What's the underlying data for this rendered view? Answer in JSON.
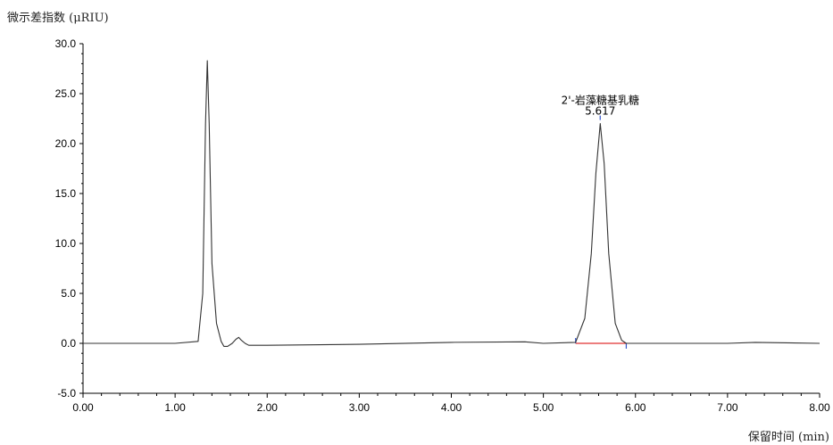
{
  "chart_data": {
    "type": "line",
    "ylabel": "微示差指数 (μRIU)",
    "xlabel": "保留时间 (min)",
    "xlim": [
      0,
      8
    ],
    "ylim": [
      -5,
      30
    ],
    "xticks": [
      "0.00",
      "1.00",
      "2.00",
      "3.00",
      "4.00",
      "5.00",
      "6.00",
      "7.00",
      "8.00"
    ],
    "yticks": [
      "-5.0",
      "0.0",
      "5.0",
      "10.0",
      "15.0",
      "20.0",
      "25.0",
      "30.0"
    ],
    "grid": false,
    "legend": "none",
    "line_color": "#333333",
    "baseline_color": "#e03030",
    "marker_color": "#3355cc",
    "series": [
      {
        "x": [
          0.0,
          0.5,
          1.0,
          1.25,
          1.3,
          1.33,
          1.35,
          1.37,
          1.4,
          1.45,
          1.5,
          1.53,
          1.57,
          1.62,
          1.66,
          1.69,
          1.72,
          1.76,
          1.8,
          2.0,
          3.0,
          4.0,
          4.8,
          5.0,
          5.35,
          5.45,
          5.52,
          5.57,
          5.617,
          5.66,
          5.71,
          5.78,
          5.85,
          5.9,
          6.0,
          7.0,
          7.3,
          8.0
        ],
        "y": [
          0.0,
          0.0,
          0.0,
          0.2,
          5.0,
          22.0,
          28.3,
          22.0,
          8.0,
          2.0,
          0.2,
          -0.3,
          -0.3,
          0.0,
          0.4,
          0.6,
          0.3,
          0.0,
          -0.2,
          -0.2,
          -0.1,
          0.1,
          0.15,
          0.0,
          0.1,
          2.5,
          9.0,
          17.0,
          22.0,
          18.0,
          9.0,
          2.0,
          0.3,
          0.0,
          0.0,
          0.0,
          0.1,
          0.0
        ]
      }
    ],
    "peak": {
      "label": "2'-岩藻糖基乳糖",
      "rt": "5.617",
      "x": 5.617,
      "y": 22.0
    },
    "integration": {
      "start": 5.35,
      "end": 5.9,
      "y": 0.0
    }
  }
}
